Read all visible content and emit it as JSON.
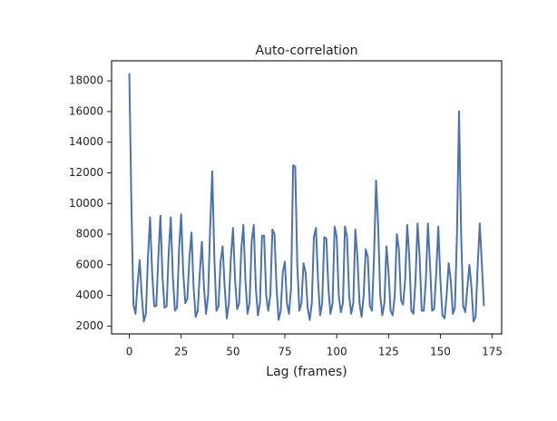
{
  "chart_data": {
    "type": "line",
    "title": "Auto-correlation",
    "x_label": "Lag (frames)",
    "x": [
      0,
      1,
      2,
      3,
      4,
      5,
      6,
      7,
      8,
      9,
      10,
      11,
      12,
      13,
      14,
      15,
      16,
      17,
      18,
      19,
      20,
      21,
      22,
      23,
      24,
      25,
      26,
      27,
      28,
      29,
      30,
      31,
      32,
      33,
      34,
      35,
      36,
      37,
      38,
      39,
      40,
      41,
      42,
      43,
      44,
      45,
      46,
      47,
      48,
      49,
      50,
      51,
      52,
      53,
      54,
      55,
      56,
      57,
      58,
      59,
      60,
      61,
      62,
      63,
      64,
      65,
      66,
      67,
      68,
      69,
      70,
      71,
      72,
      73,
      74,
      75,
      76,
      77,
      78,
      79,
      80,
      81,
      82,
      83,
      84,
      85,
      86,
      87,
      88,
      89,
      90,
      91,
      92,
      93,
      94,
      95,
      96,
      97,
      98,
      99,
      100,
      101,
      102,
      103,
      104,
      105,
      106,
      107,
      108,
      109,
      110,
      111,
      112,
      113,
      114,
      115,
      116,
      117,
      118,
      119,
      120,
      121,
      122,
      123,
      124,
      125,
      126,
      127,
      128,
      129,
      130,
      131,
      132,
      133,
      134,
      135,
      136,
      137,
      138,
      139,
      140,
      141,
      142,
      143,
      144,
      145,
      146,
      147,
      148,
      149,
      150,
      151,
      152,
      153,
      154,
      155,
      156,
      157,
      158,
      159,
      160,
      161,
      162,
      163,
      164,
      165,
      166,
      167,
      168,
      169,
      170,
      171
    ],
    "values": [
      18500,
      10000,
      3400,
      2800,
      4800,
      6300,
      4000,
      2300,
      2800,
      6500,
      9100,
      5500,
      3300,
      3300,
      6500,
      9200,
      5200,
      3200,
      3300,
      6800,
      9100,
      5200,
      3000,
      3200,
      7000,
      9300,
      5500,
      3500,
      3800,
      6500,
      8100,
      4500,
      2600,
      3000,
      5500,
      7500,
      4500,
      2800,
      4000,
      8500,
      12100,
      6500,
      3000,
      3300,
      6200,
      7200,
      4500,
      2500,
      3500,
      6500,
      8400,
      5000,
      3100,
      3500,
      7000,
      8600,
      5000,
      2800,
      3500,
      7500,
      8600,
      4500,
      2700,
      3500,
      7900,
      7900,
      4000,
      3000,
      4000,
      8300,
      8000,
      4500,
      2400,
      3000,
      5500,
      6200,
      3500,
      2800,
      4500,
      12500,
      12400,
      6000,
      3000,
      3500,
      6100,
      5500,
      3200,
      2400,
      3500,
      7800,
      8400,
      5000,
      2700,
      3500,
      7800,
      7700,
      4500,
      2800,
      3500,
      8500,
      7800,
      4000,
      2900,
      3500,
      8500,
      7800,
      4000,
      2800,
      3500,
      8300,
      6500,
      3500,
      2600,
      4000,
      7000,
      6500,
      3300,
      3000,
      6500,
      11500,
      8500,
      4000,
      2700,
      3500,
      7200,
      5500,
      3000,
      2700,
      4000,
      8000,
      7000,
      3700,
      3400,
      5000,
      8600,
      6500,
      3000,
      2800,
      5000,
      8700,
      6500,
      3000,
      3000,
      5000,
      8700,
      6000,
      3000,
      3100,
      5500,
      8500,
      5000,
      2700,
      2500,
      4000,
      6100,
      5000,
      2800,
      3200,
      8000,
      16000,
      8000,
      3300,
      2900,
      4500,
      6000,
      4500,
      2300,
      2600,
      6000,
      8700,
      6000,
      3300
    ],
    "color": "#4c72b0",
    "xlim": [
      -8.55,
      179.55
    ],
    "xticks": [
      0,
      25,
      50,
      75,
      100,
      125,
      150,
      175
    ],
    "ylim": [
      1490,
      19310
    ],
    "yticks": [
      2000,
      4000,
      6000,
      8000,
      10000,
      12000,
      14000,
      16000,
      18000
    ]
  }
}
